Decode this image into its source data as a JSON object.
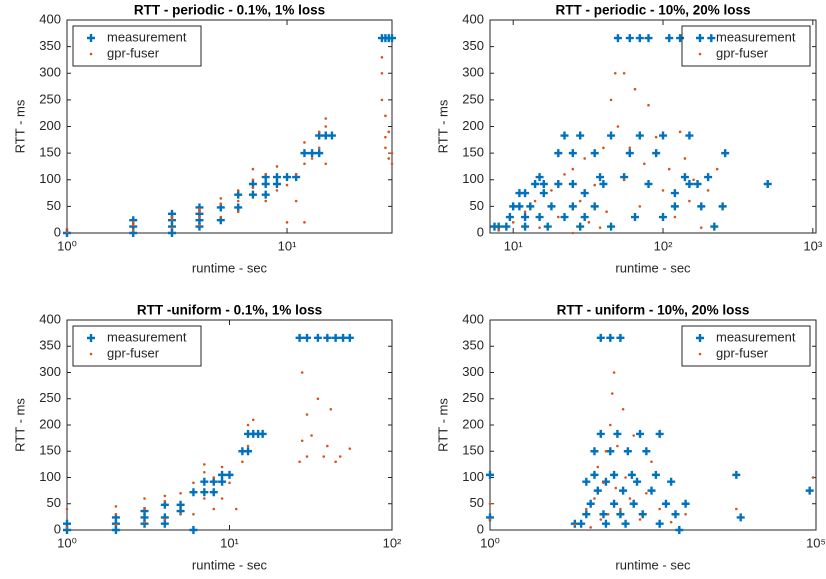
{
  "chart_data": [
    {
      "type": "scatter",
      "title": "RTT - periodic - 0.1%, 1% loss",
      "xlabel": "runtime - sec",
      "ylabel": "RTT - ms",
      "xscale": "log",
      "legend": "upper left",
      "xlim": [
        1,
        30
      ],
      "ylim": [
        0,
        400
      ],
      "xticks": [
        {
          "value": 1,
          "label": "10⁰"
        },
        {
          "value": 10,
          "label": "10¹"
        }
      ],
      "yticks": [
        0,
        50,
        100,
        150,
        200,
        250,
        300,
        350,
        400
      ],
      "series": [
        {
          "name": "measurement",
          "color": "#0072bd",
          "marker": "+",
          "x": [
            1,
            2,
            2,
            2,
            3,
            3,
            3,
            3,
            4,
            4,
            4,
            4,
            5,
            5,
            6,
            6,
            7,
            7,
            8,
            8,
            8,
            9,
            9,
            10,
            11,
            12,
            13,
            14,
            14,
            15,
            16,
            27,
            28,
            29,
            30
          ],
          "y": [
            0,
            0,
            12,
            24,
            0,
            12,
            24,
            36,
            12,
            24,
            36,
            48,
            24,
            48,
            48,
            72,
            72,
            92,
            72,
            92,
            105,
            92,
            105,
            105,
            105,
            150,
            150,
            150,
            183,
            183,
            183,
            366,
            366,
            366,
            366
          ]
        },
        {
          "name": "gpr-fuser",
          "color": "#d95319",
          "marker": ".",
          "x": [
            1,
            1,
            2,
            2,
            2,
            3,
            3,
            3,
            4,
            4,
            4,
            4,
            5,
            5,
            5,
            6,
            6,
            6,
            7,
            7,
            7,
            8,
            8,
            9,
            9,
            10,
            10,
            11,
            11,
            12,
            12,
            12,
            13,
            14,
            14,
            15,
            15,
            15,
            27,
            27,
            28,
            28,
            28,
            29,
            29,
            30,
            30,
            27
          ],
          "y": [
            2,
            8,
            5,
            15,
            20,
            10,
            25,
            30,
            15,
            30,
            40,
            45,
            30,
            55,
            65,
            40,
            60,
            80,
            85,
            100,
            120,
            60,
            110,
            80,
            125,
            90,
            20,
            60,
            110,
            130,
            170,
            20,
            140,
            160,
            190,
            130,
            200,
            215,
            300,
            250,
            180,
            220,
            160,
            140,
            190,
            130,
            150,
            330
          ]
        }
      ]
    },
    {
      "type": "scatter",
      "title": "RTT - periodic - 10%, 20% loss",
      "xlabel": "runtime - sec",
      "ylabel": "RTT - ms",
      "xscale": "log",
      "legend": "upper right",
      "xlim": [
        7,
        1050
      ],
      "ylim": [
        0,
        400
      ],
      "xticks": [
        {
          "value": 10,
          "label": "10¹"
        },
        {
          "value": 100,
          "label": "10²"
        },
        {
          "value": 1000,
          "label": "10³"
        }
      ],
      "yticks": [
        0,
        50,
        100,
        150,
        200,
        250,
        300,
        350,
        400
      ],
      "series": [
        {
          "name": "measurement",
          "color": "#0072bd",
          "marker": "+",
          "x": [
            7.5,
            8,
            9,
            9.5,
            10,
            11,
            11,
            12,
            12,
            12,
            13,
            14,
            15,
            15,
            16,
            16,
            17,
            18,
            20,
            20,
            22,
            22,
            25,
            25,
            25,
            28,
            28,
            30,
            30,
            35,
            35,
            38,
            40,
            45,
            45,
            50,
            55,
            60,
            60,
            65,
            70,
            70,
            80,
            80,
            90,
            100,
            100,
            110,
            120,
            120,
            130,
            140,
            150,
            150,
            170,
            180,
            200,
            210,
            220,
            250,
            260,
            500
          ],
          "y": [
            12,
            12,
            12,
            30,
            50,
            50,
            75,
            12,
            30,
            75,
            50,
            92,
            105,
            30,
            75,
            92,
            12,
            50,
            92,
            150,
            30,
            183,
            50,
            92,
            150,
            183,
            12,
            75,
            30,
            150,
            50,
            105,
            92,
            183,
            12,
            366,
            105,
            366,
            150,
            30,
            183,
            366,
            366,
            92,
            150,
            183,
            30,
            366,
            75,
            50,
            366,
            105,
            183,
            92,
            92,
            50,
            105,
            366,
            12,
            50,
            150,
            92
          ]
        },
        {
          "name": "gpr-fuser",
          "color": "#d95319",
          "marker": ".",
          "x": [
            8,
            10,
            12,
            14,
            15,
            18,
            20,
            22,
            25,
            25,
            28,
            30,
            32,
            35,
            38,
            40,
            42,
            45,
            48,
            50,
            55,
            55,
            60,
            65,
            70,
            75,
            80,
            90,
            100,
            110,
            120,
            130,
            140,
            150,
            160,
            180,
            200,
            230
          ],
          "y": [
            5,
            20,
            40,
            60,
            10,
            80,
            30,
            110,
            120,
            0,
            60,
            140,
            20,
            90,
            10,
            160,
            40,
            250,
            300,
            200,
            100,
            300,
            160,
            270,
            50,
            130,
            240,
            180,
            80,
            120,
            30,
            190,
            140,
            60,
            100,
            10,
            80,
            120
          ]
        }
      ]
    },
    {
      "type": "scatter",
      "title": "RTT -uniform - 0.1%, 1% loss",
      "xlabel": "runtime - sec",
      "ylabel": "RTT - ms",
      "xscale": "log",
      "legend": "upper left",
      "xlim": [
        1,
        100
      ],
      "ylim": [
        0,
        400
      ],
      "xticks": [
        {
          "value": 1,
          "label": "10⁰"
        },
        {
          "value": 10,
          "label": "10¹"
        },
        {
          "value": 100,
          "label": "10²"
        }
      ],
      "yticks": [
        0,
        50,
        100,
        150,
        200,
        250,
        300,
        350,
        400
      ],
      "series": [
        {
          "name": "measurement",
          "color": "#0072bd",
          "marker": "+",
          "x": [
            1,
            1,
            2,
            2,
            2,
            3,
            3,
            3,
            4,
            4,
            4,
            5,
            5,
            6,
            6,
            7,
            7,
            8,
            8,
            9,
            9,
            10,
            12,
            13,
            13,
            14,
            15,
            16,
            27,
            30,
            35,
            40,
            45,
            50,
            55
          ],
          "y": [
            0,
            12,
            0,
            12,
            24,
            12,
            24,
            36,
            12,
            24,
            48,
            36,
            48,
            0,
            72,
            72,
            92,
            72,
            92,
            92,
            105,
            105,
            150,
            150,
            183,
            183,
            183,
            183,
            366,
            366,
            366,
            366,
            366,
            366,
            366
          ]
        },
        {
          "name": "gpr-fuser",
          "color": "#d95319",
          "marker": ".",
          "x": [
            1,
            1,
            2,
            2,
            2,
            3,
            3,
            3,
            4,
            4,
            4,
            5,
            5,
            6,
            6,
            7,
            7,
            7,
            8,
            8,
            9,
            9,
            10,
            11,
            12,
            13,
            13,
            14,
            28,
            30,
            30,
            32,
            35,
            38,
            40,
            42,
            45,
            48,
            55,
            27,
            28
          ],
          "y": [
            5,
            40,
            10,
            30,
            45,
            15,
            40,
            60,
            20,
            55,
            65,
            30,
            70,
            30,
            90,
            60,
            110,
            125,
            40,
            100,
            60,
            120,
            90,
            40,
            130,
            160,
            200,
            210,
            300,
            220,
            140,
            180,
            250,
            140,
            160,
            230,
            130,
            140,
            155,
            130,
            170
          ]
        }
      ]
    },
    {
      "type": "scatter",
      "title": "RTT - uniform - 10%, 20% loss",
      "xlabel": "runtime - sec",
      "ylabel": "RTT - ms",
      "xscale": "log",
      "legend": "upper right",
      "xlim": [
        1,
        100000
      ],
      "ylim": [
        0,
        400
      ],
      "xticks": [
        {
          "value": 1,
          "label": "10⁰"
        },
        {
          "value": 100000,
          "label": "10⁵"
        }
      ],
      "yticks": [
        0,
        50,
        100,
        150,
        200,
        250,
        300,
        350,
        400
      ],
      "series": [
        {
          "name": "measurement",
          "color": "#0072bd",
          "marker": "+",
          "x": [
            1,
            1,
            20,
            25,
            30,
            30,
            35,
            40,
            40,
            45,
            50,
            50,
            55,
            60,
            60,
            70,
            70,
            80,
            80,
            90,
            100,
            100,
            110,
            120,
            130,
            150,
            160,
            180,
            200,
            220,
            250,
            300,
            350,
            400,
            400,
            500,
            600,
            700,
            800,
            1000,
            6000,
            7000,
            80000
          ],
          "y": [
            105,
            24,
            12,
            12,
            30,
            92,
            50,
            105,
            150,
            75,
            183,
            366,
            30,
            12,
            92,
            150,
            366,
            50,
            105,
            183,
            30,
            366,
            75,
            12,
            150,
            105,
            50,
            92,
            183,
            30,
            150,
            75,
            105,
            12,
            183,
            50,
            92,
            30,
            0,
            50,
            105,
            24,
            75
          ]
        },
        {
          "name": "gpr-fuser",
          "color": "#d95319",
          "marker": ".",
          "x": [
            1,
            1,
            20,
            30,
            35,
            40,
            45,
            50,
            55,
            60,
            65,
            70,
            75,
            80,
            85,
            90,
            100,
            110,
            120,
            140,
            160,
            200,
            250,
            300,
            400,
            600,
            1000,
            6000,
            90000
          ],
          "y": [
            20,
            50,
            10,
            40,
            5,
            60,
            120,
            20,
            90,
            150,
            30,
            200,
            260,
            300,
            80,
            160,
            40,
            230,
            100,
            60,
            180,
            20,
            70,
            130,
            40,
            15,
            30,
            40,
            100
          ]
        }
      ]
    }
  ]
}
